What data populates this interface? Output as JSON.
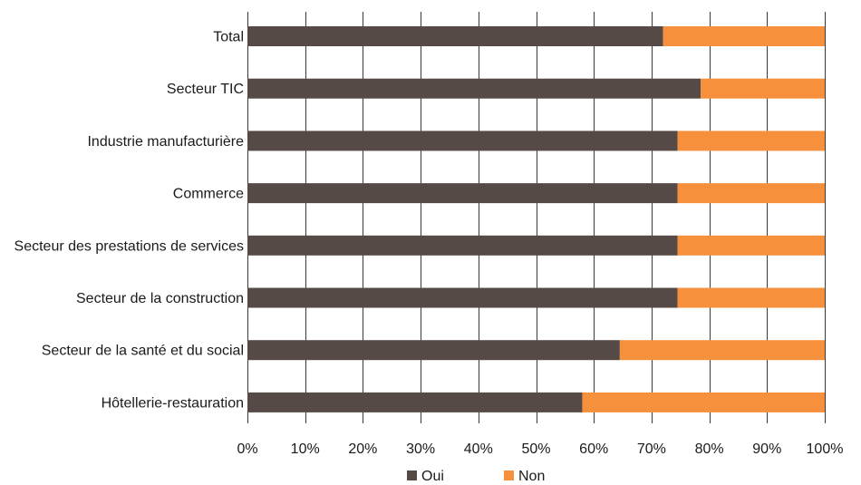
{
  "chart_data": {
    "type": "bar",
    "orientation": "horizontal",
    "stacked": true,
    "categories": [
      "Total",
      "Secteur TIC",
      "Industrie manufacturière",
      "Commerce",
      "Secteur des prestations de services",
      "Secteur de la construction",
      "Secteur de la santé et du social",
      "Hôtellerie-restauration"
    ],
    "series": [
      {
        "name": "Oui",
        "color": "#564a46",
        "values": [
          72,
          78.5,
          74.5,
          74.5,
          74.5,
          74.5,
          64.5,
          58
        ]
      },
      {
        "name": "Non",
        "color": "#f6903d",
        "values": [
          28,
          21.5,
          25.5,
          25.5,
          25.5,
          25.5,
          35.5,
          42
        ]
      }
    ],
    "xlim": [
      0,
      100
    ],
    "xticks": [
      "0%",
      "10%",
      "20%",
      "30%",
      "40%",
      "50%",
      "60%",
      "70%",
      "80%",
      "90%",
      "100%"
    ],
    "grid": "vertical",
    "legend": "bottom",
    "title": "",
    "xlabel": "",
    "ylabel": ""
  }
}
